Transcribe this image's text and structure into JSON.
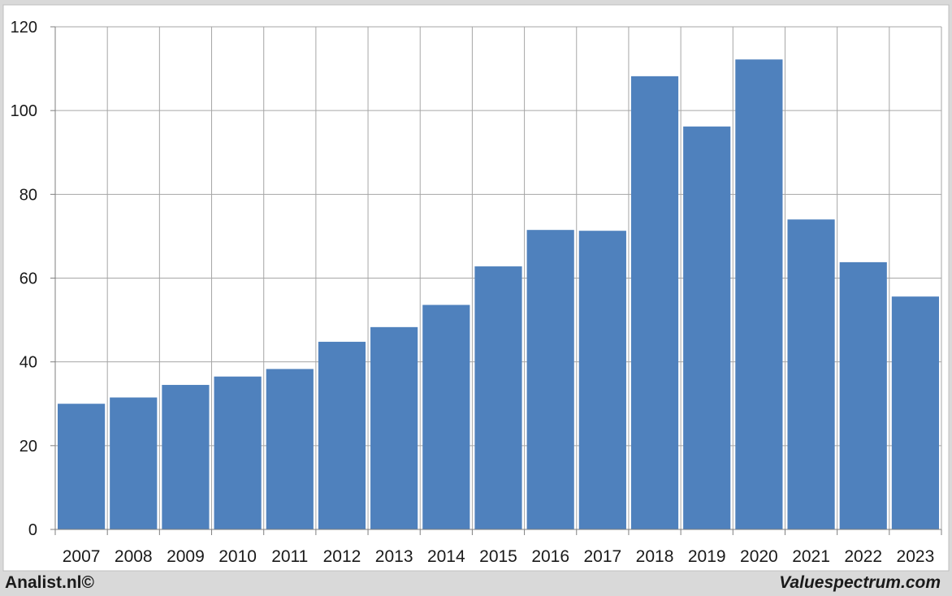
{
  "chart_data": {
    "type": "bar",
    "categories": [
      "2007",
      "2008",
      "2009",
      "2010",
      "2011",
      "2012",
      "2013",
      "2014",
      "2015",
      "2016",
      "2017",
      "2018",
      "2019",
      "2020",
      "2021",
      "2022",
      "2023"
    ],
    "values": [
      30,
      31.5,
      34.5,
      36.5,
      38.3,
      44.8,
      48.3,
      53.6,
      62.8,
      71.5,
      71.3,
      108.2,
      96.2,
      112.2,
      74,
      63.8,
      55.6
    ],
    "title": "",
    "xlabel": "",
    "ylabel": "",
    "ylim": [
      0,
      120
    ],
    "yticks": [
      0,
      20,
      40,
      60,
      80,
      100,
      120
    ],
    "grid": true,
    "bar_color": "#4f81bd",
    "grid_color": "#a6a6a6"
  },
  "footer": {
    "left": "Analist.nl©",
    "right": "Valuespectrum.com"
  }
}
